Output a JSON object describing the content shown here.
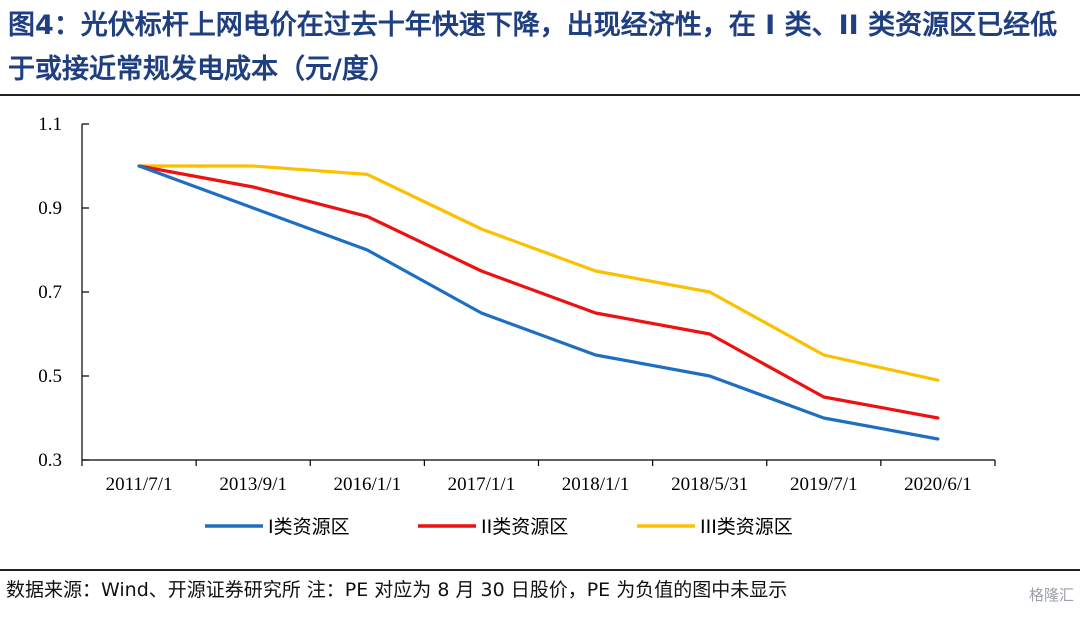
{
  "title": "图4：光伏标杆上网电价在过去十年快速下降，出现经济性，在 I 类、II 类资源区已经低于或接近常规发电成本（元/度）",
  "footer": "数据来源：Wind、开源证券研究所 注：PE 对应为 8 月 30 日股价，PE 为负值的图中未显示",
  "watermark": "格隆汇",
  "chart_data": {
    "type": "line",
    "categories": [
      "2011/7/1",
      "2013/9/1",
      "2016/1/1",
      "2017/1/1",
      "2018/1/1",
      "2018/5/31",
      "2019/7/1",
      "2020/6/1"
    ],
    "ylim": [
      0.3,
      1.1
    ],
    "yticks": [
      0.3,
      0.5,
      0.7,
      0.9,
      1.1
    ],
    "ytick_labels": [
      "0.3",
      "0.5",
      "0.7",
      "0.9",
      "1.1"
    ],
    "legend_position": "bottom",
    "grid": false,
    "series": [
      {
        "name": "I类资源区",
        "color": "#1f6fc0",
        "values": [
          1.0,
          0.9,
          0.8,
          0.65,
          0.55,
          0.5,
          0.4,
          0.35
        ]
      },
      {
        "name": "II类资源区",
        "color": "#ee1111",
        "values": [
          1.0,
          0.95,
          0.88,
          0.75,
          0.65,
          0.6,
          0.45,
          0.4
        ]
      },
      {
        "name": "III类资源区",
        "color": "#fbc000",
        "values": [
          1.0,
          1.0,
          0.98,
          0.85,
          0.75,
          0.7,
          0.55,
          0.49
        ]
      }
    ]
  }
}
